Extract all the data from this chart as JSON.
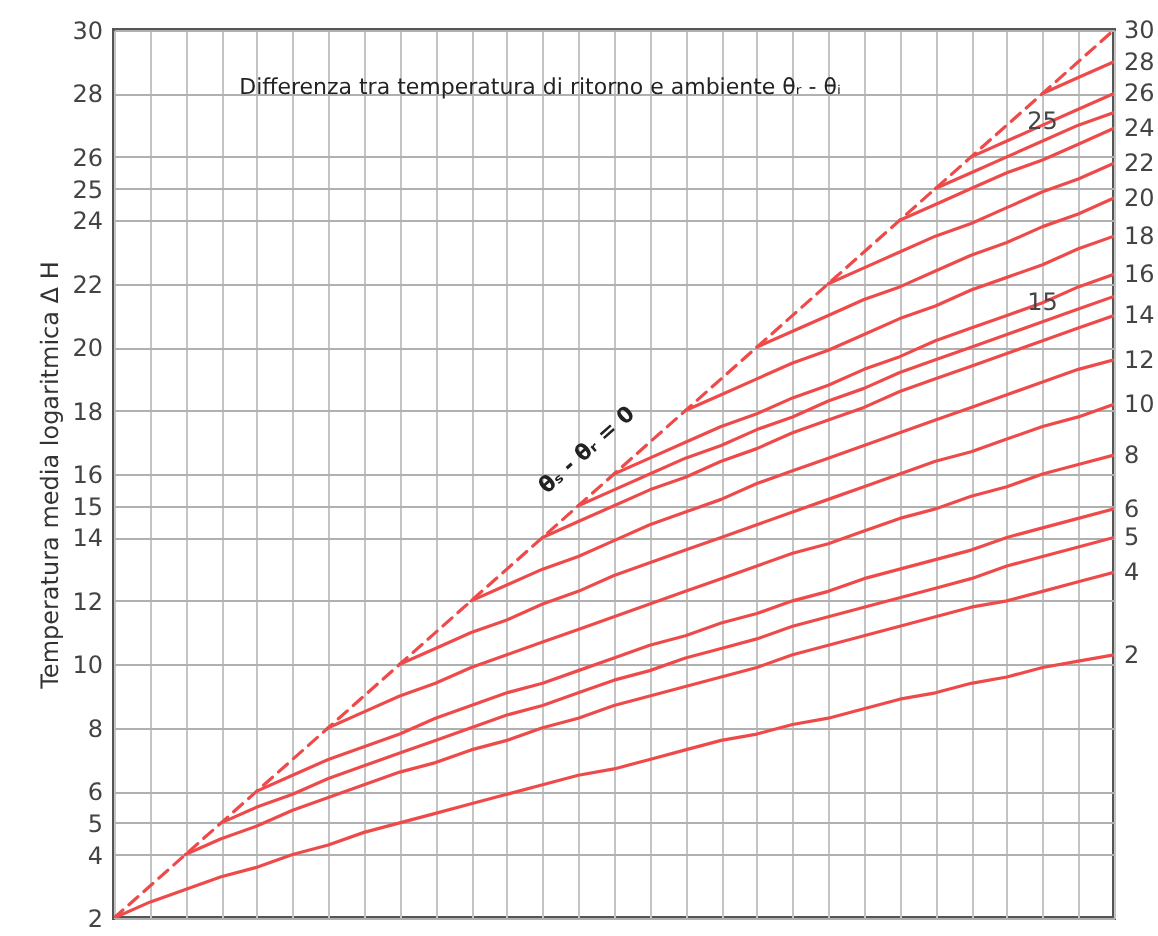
{
  "chart_data": {
    "type": "line",
    "title": "Differenza tra temperatura di ritorno e ambiente θᵣ - θᵢ",
    "ylabel": "Temperatura media logaritmica Δ H",
    "categories": [
      null,
      null,
      null,
      null,
      null,
      null,
      null,
      null,
      null,
      null,
      null,
      null,
      null,
      null,
      null,
      null,
      null,
      null,
      null,
      null,
      null,
      null,
      null,
      null,
      null,
      null,
      null,
      null,
      null
    ],
    "ylim": [
      2,
      30
    ],
    "yticks": [
      2,
      4,
      5,
      6,
      8,
      10,
      12,
      14,
      15,
      16,
      18,
      20,
      22,
      24,
      25,
      26,
      28,
      30
    ],
    "tick_labels": "y",
    "grid": true,
    "annotations": [
      "θₛ - θᵣ = 0"
    ],
    "series": [
      {
        "name": "30",
        "color": "#ee4a4a",
        "line_style": "dashed",
        "values": [
          2,
          3,
          4,
          5,
          6,
          7,
          8,
          9,
          10,
          11,
          12,
          13,
          14,
          15,
          16,
          17,
          18,
          19,
          20,
          21,
          22,
          23,
          24,
          25,
          26,
          27,
          28,
          29,
          30
        ]
      },
      {
        "name": "28",
        "color": "#ee4a4a",
        "values": [
          null,
          null,
          null,
          null,
          null,
          null,
          null,
          null,
          null,
          null,
          null,
          null,
          null,
          null,
          null,
          null,
          null,
          null,
          null,
          null,
          null,
          null,
          null,
          null,
          null,
          null,
          28,
          28.5,
          29.0
        ]
      },
      {
        "name": "26",
        "color": "#ee4a4a",
        "values": [
          null,
          null,
          null,
          null,
          null,
          null,
          null,
          null,
          null,
          null,
          null,
          null,
          null,
          null,
          null,
          null,
          null,
          null,
          null,
          null,
          null,
          null,
          null,
          null,
          26,
          26.5,
          27.0,
          27.5,
          28.0
        ]
      },
      {
        "name": "25",
        "color": "#ee4a4a",
        "values": [
          null,
          null,
          null,
          null,
          null,
          null,
          null,
          null,
          null,
          null,
          null,
          null,
          null,
          null,
          null,
          null,
          null,
          null,
          null,
          null,
          null,
          null,
          null,
          25,
          25.5,
          26.0,
          26.5,
          27.0,
          27.4
        ]
      },
      {
        "name": "24",
        "color": "#ee4a4a",
        "values": [
          null,
          null,
          null,
          null,
          null,
          null,
          null,
          null,
          null,
          null,
          null,
          null,
          null,
          null,
          null,
          null,
          null,
          null,
          null,
          null,
          null,
          null,
          24,
          24.5,
          25.0,
          25.5,
          25.9,
          26.4,
          26.9
        ]
      },
      {
        "name": "22",
        "color": "#ee4a4a",
        "values": [
          null,
          null,
          null,
          null,
          null,
          null,
          null,
          null,
          null,
          null,
          null,
          null,
          null,
          null,
          null,
          null,
          null,
          null,
          null,
          null,
          22,
          22.5,
          23.0,
          23.5,
          23.9,
          24.4,
          24.9,
          25.3,
          25.8
        ]
      },
      {
        "name": "20",
        "color": "#ee4a4a",
        "values": [
          null,
          null,
          null,
          null,
          null,
          null,
          null,
          null,
          null,
          null,
          null,
          null,
          null,
          null,
          null,
          null,
          null,
          null,
          20,
          20.5,
          21.0,
          21.5,
          21.9,
          22.4,
          22.9,
          23.3,
          23.8,
          24.2,
          24.7
        ]
      },
      {
        "name": "18",
        "color": "#ee4a4a",
        "values": [
          null,
          null,
          null,
          null,
          null,
          null,
          null,
          null,
          null,
          null,
          null,
          null,
          null,
          null,
          null,
          null,
          18,
          18.5,
          19.0,
          19.5,
          19.9,
          20.4,
          20.9,
          21.3,
          21.8,
          22.2,
          22.6,
          23.1,
          23.5
        ]
      },
      {
        "name": "16",
        "color": "#ee4a4a",
        "values": [
          null,
          null,
          null,
          null,
          null,
          null,
          null,
          null,
          null,
          null,
          null,
          null,
          null,
          null,
          16,
          16.5,
          17.0,
          17.5,
          17.9,
          18.4,
          18.8,
          19.3,
          19.7,
          20.2,
          20.6,
          21.0,
          21.4,
          21.9,
          22.3
        ]
      },
      {
        "name": "15",
        "color": "#ee4a4a",
        "values": [
          null,
          null,
          null,
          null,
          null,
          null,
          null,
          null,
          null,
          null,
          null,
          null,
          null,
          15,
          15.5,
          16.0,
          16.5,
          16.9,
          17.4,
          17.8,
          18.3,
          18.7,
          19.2,
          19.6,
          20.0,
          20.4,
          20.8,
          21.2,
          21.6
        ]
      },
      {
        "name": "14",
        "color": "#ee4a4a",
        "values": [
          null,
          null,
          null,
          null,
          null,
          null,
          null,
          null,
          null,
          null,
          null,
          null,
          14,
          14.5,
          15.0,
          15.5,
          15.9,
          16.4,
          16.8,
          17.3,
          17.7,
          18.1,
          18.6,
          19.0,
          19.4,
          19.8,
          20.2,
          20.6,
          21.0
        ]
      },
      {
        "name": "12",
        "color": "#ee4a4a",
        "values": [
          null,
          null,
          null,
          null,
          null,
          null,
          null,
          null,
          null,
          null,
          12,
          12.5,
          13.0,
          13.4,
          13.9,
          14.4,
          14.8,
          15.2,
          15.7,
          16.1,
          16.5,
          16.9,
          17.3,
          17.7,
          18.1,
          18.5,
          18.9,
          19.3,
          19.6
        ]
      },
      {
        "name": "10",
        "color": "#ee4a4a",
        "values": [
          null,
          null,
          null,
          null,
          null,
          null,
          null,
          null,
          10,
          10.5,
          11.0,
          11.4,
          11.9,
          12.3,
          12.8,
          13.2,
          13.6,
          14.0,
          14.4,
          14.8,
          15.2,
          15.6,
          16.0,
          16.4,
          16.7,
          17.1,
          17.5,
          17.8,
          18.2
        ]
      },
      {
        "name": "8",
        "color": "#ee4a4a",
        "values": [
          null,
          null,
          null,
          null,
          null,
          null,
          8,
          8.5,
          9.0,
          9.4,
          9.9,
          10.3,
          10.7,
          11.1,
          11.5,
          11.9,
          12.3,
          12.7,
          13.1,
          13.5,
          13.8,
          14.2,
          14.6,
          14.9,
          15.3,
          15.6,
          16.0,
          16.3,
          16.6
        ]
      },
      {
        "name": "6",
        "color": "#ee4a4a",
        "values": [
          null,
          null,
          null,
          null,
          6,
          6.5,
          7.0,
          7.4,
          7.8,
          8.3,
          8.7,
          9.1,
          9.4,
          9.8,
          10.2,
          10.6,
          10.9,
          11.3,
          11.6,
          12.0,
          12.3,
          12.7,
          13.0,
          13.3,
          13.6,
          14.0,
          14.3,
          14.6,
          14.9
        ]
      },
      {
        "name": "5",
        "color": "#ee4a4a",
        "values": [
          null,
          null,
          null,
          5,
          5.5,
          5.9,
          6.4,
          6.8,
          7.2,
          7.6,
          8.0,
          8.4,
          8.7,
          9.1,
          9.5,
          9.8,
          10.2,
          10.5,
          10.8,
          11.2,
          11.5,
          11.8,
          12.1,
          12.4,
          12.7,
          13.1,
          13.4,
          13.7,
          14.0
        ]
      },
      {
        "name": "4",
        "color": "#ee4a4a",
        "values": [
          null,
          null,
          4,
          4.5,
          4.9,
          5.4,
          5.8,
          6.2,
          6.6,
          6.9,
          7.3,
          7.6,
          8.0,
          8.3,
          8.7,
          9.0,
          9.3,
          9.6,
          9.9,
          10.3,
          10.6,
          10.9,
          11.2,
          11.5,
          11.8,
          12.0,
          12.3,
          12.6,
          12.9
        ]
      },
      {
        "name": "2",
        "color": "#ee4a4a",
        "values": [
          2,
          2.5,
          2.9,
          3.3,
          3.6,
          4.0,
          4.3,
          4.7,
          5.0,
          5.3,
          5.6,
          5.9,
          6.2,
          6.5,
          6.7,
          7.0,
          7.3,
          7.6,
          7.8,
          8.1,
          8.3,
          8.6,
          8.9,
          9.1,
          9.4,
          9.6,
          9.9,
          10.1,
          10.3
        ]
      }
    ]
  }
}
